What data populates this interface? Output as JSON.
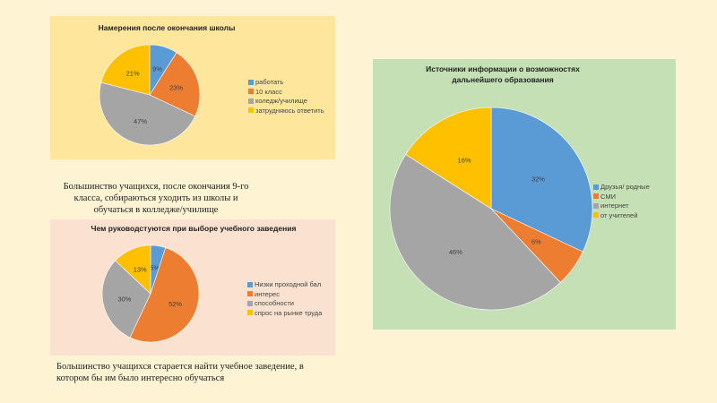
{
  "colors": {
    "blue": "#5b9bd5",
    "orange": "#ed7d31",
    "gray": "#a5a5a5",
    "yellow": "#ffc000"
  },
  "chart_data": [
    {
      "type": "pie",
      "title": "Намерения после окончания школы",
      "categories": [
        "работать",
        "10 класс",
        "коледж/училище",
        "затрудняюсь  ответить"
      ],
      "values": [
        9,
        23,
        47,
        21
      ],
      "labels": [
        "9%",
        "23%",
        "47%",
        "21%"
      ],
      "legend": "right"
    },
    {
      "type": "pie",
      "title": "Чем руководстуются при выборе учебного заведения",
      "categories": [
        "Низки проходной бал",
        "интерес",
        "способности",
        "спрос на рынке труда"
      ],
      "values": [
        5,
        52,
        30,
        13
      ],
      "labels": [
        "5%",
        "52%",
        "30%",
        "13%"
      ],
      "legend": "right"
    },
    {
      "type": "pie",
      "title": "Источники информации о возможностях дальнейшего образования",
      "categories": [
        "Друзья/ родные",
        "СМИ",
        "интернет",
        "от учителей"
      ],
      "values": [
        32,
        6,
        46,
        16
      ],
      "labels": [
        "32%",
        "6%",
        "46%",
        "16%"
      ],
      "legend": "right"
    }
  ],
  "captions": {
    "first": "Большинство учащихся, после окончания 9-го класса, собираються уходить  из школы  и обучаться в колледже/училище",
    "second": "Большинство учащихся старается найти учебное заведение, в котором бы им было интересно обучаться"
  }
}
